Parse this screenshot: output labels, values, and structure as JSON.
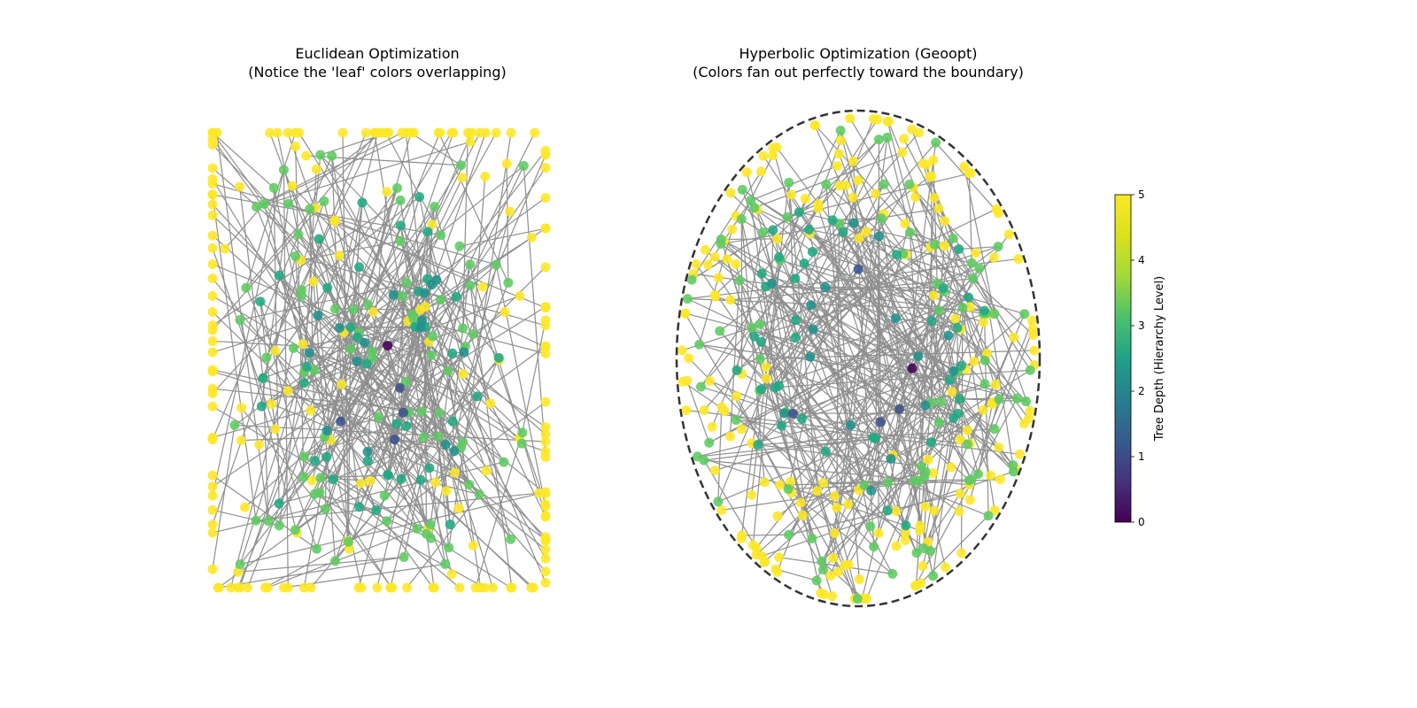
{
  "chart_data": [
    {
      "type": "scatter",
      "title_line1": "Euclidean Optimization",
      "title_line2": "(Notice the 'leaf' colors overlapping)",
      "xlim": [
        -1.05,
        1.05
      ],
      "ylim": [
        -1.05,
        1.05
      ],
      "boundary": "none",
      "node_size": 10,
      "edge_color": "#8f8f8f",
      "grid": false,
      "axes_visible": false
    },
    {
      "type": "scatter",
      "title_line1": "Hyperbolic Optimization (Geoopt)",
      "title_line2": "(Colors fan out perfectly toward the boundary)",
      "xlim": [
        -1.05,
        1.05
      ],
      "ylim": [
        -1.05,
        1.05
      ],
      "boundary": "unit circle (dashed)",
      "node_size": 10,
      "edge_color": "#8f8f8f",
      "grid": false,
      "axes_visible": false
    }
  ],
  "colorbar": {
    "label": "Tree Depth (Hierarchy Level)",
    "colormap": "viridis",
    "min": 0,
    "max": 5,
    "ticks": [
      "0",
      "1",
      "2",
      "3",
      "4",
      "5"
    ]
  },
  "palette": {
    "level0": "#440154",
    "level1": "#3b528b",
    "level2": "#21918c",
    "level3": "#21a883",
    "level4": "#5ec962",
    "level5": "#fde725",
    "edge": "#8f8f8f",
    "boundary": "#333333"
  }
}
